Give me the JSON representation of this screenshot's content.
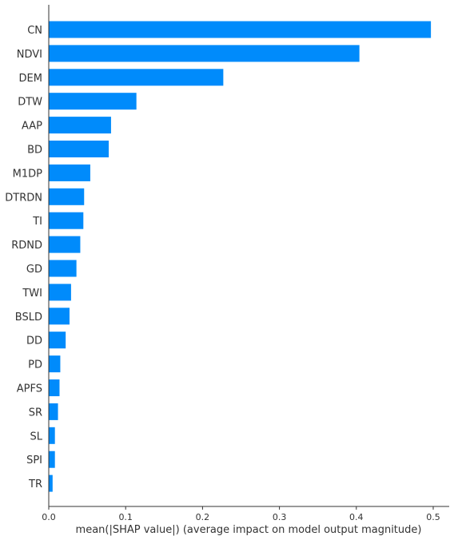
{
  "chart_data": {
    "type": "bar",
    "orientation": "horizontal",
    "categories": [
      "CN",
      "NDVI",
      "DEM",
      "DTW",
      "AAP",
      "BD",
      "M1DP",
      "DTRDN",
      "TI",
      "RDND",
      "GD",
      "TWI",
      "BSLD",
      "DD",
      "PD",
      "APFS",
      "SR",
      "SL",
      "SPI",
      "TR"
    ],
    "values": [
      0.497,
      0.404,
      0.227,
      0.114,
      0.081,
      0.078,
      0.054,
      0.046,
      0.045,
      0.041,
      0.036,
      0.029,
      0.027,
      0.022,
      0.015,
      0.014,
      0.012,
      0.008,
      0.008,
      0.005
    ],
    "xlabel": "mean(|SHAP value|) (average impact on model output magnitude)",
    "xticks": [
      "0.0",
      "0.1",
      "0.2",
      "0.3",
      "0.4",
      "0.5"
    ],
    "xlim": [
      0,
      0.52
    ],
    "bar_color": "#008bfb",
    "grid": false
  }
}
